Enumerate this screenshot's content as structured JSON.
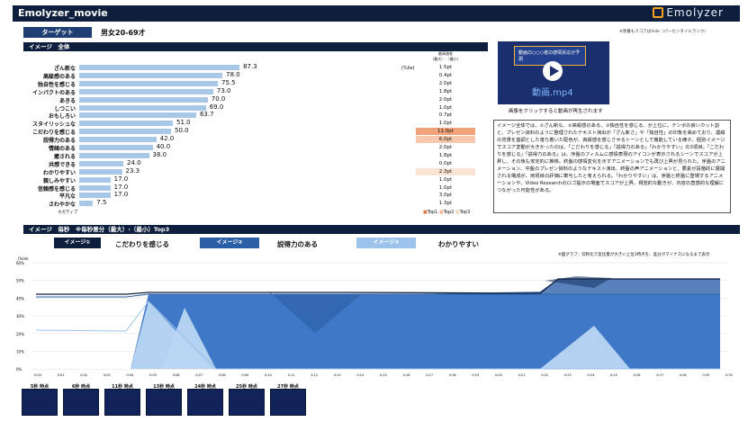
{
  "header": {
    "title": "Emolyzer_movie",
    "logo": "Emolyzer"
  },
  "note_top": "※黒番もスコアは%ile（パーセンタイルランク）",
  "target": {
    "label": "ターゲット",
    "value": "男女20-69才"
  },
  "overall": {
    "section_title": "イメージ　全体",
    "diff_header": "最高値差\n（最大）-（最小）",
    "unit": "(%ile)",
    "negative_label": "ネガティブ",
    "legend": [
      "Top1",
      "Top2",
      "Top3"
    ],
    "rows": [
      {
        "label": "ざん新な",
        "value": 87.3,
        "diff": "1.5pt",
        "rank": 0
      },
      {
        "label": "高級感のある",
        "value": 78.0,
        "diff": "0.4pt",
        "rank": 0
      },
      {
        "label": "独自性を感じる",
        "value": 75.5,
        "diff": "2.0pt",
        "rank": 0
      },
      {
        "label": "インパクトのある",
        "value": 73.0,
        "diff": "1.8pt",
        "rank": 0
      },
      {
        "label": "あきる",
        "value": 70.0,
        "diff": "2.0pt",
        "rank": 0
      },
      {
        "label": "しつこい",
        "value": 69.0,
        "diff": "1.0pt",
        "rank": 0
      },
      {
        "label": "おもしろい",
        "value": 63.7,
        "diff": "0.7pt",
        "rank": 0
      },
      {
        "label": "スタイリッシュな",
        "value": 51.0,
        "diff": "1.0pt",
        "rank": 0
      },
      {
        "label": "こだわりを感じる",
        "value": 50.0,
        "diff": "11.0pt",
        "rank": 1
      },
      {
        "label": "説得力のある",
        "value": 42.0,
        "diff": "6.0pt",
        "rank": 2
      },
      {
        "label": "情緒のある",
        "value": 40.0,
        "diff": "2.0pt",
        "rank": 0
      },
      {
        "label": "癒される",
        "value": 38.0,
        "diff": "1.8pt",
        "rank": 0
      },
      {
        "label": "共感できる",
        "value": 24.0,
        "diff": "0.0pt",
        "rank": 0
      },
      {
        "label": "わかりやすい",
        "value": 23.3,
        "diff": "2.3pt",
        "rank": 3
      },
      {
        "label": "親しみやすい",
        "value": 17.0,
        "diff": "1.0pt",
        "rank": 0
      },
      {
        "label": "信頼感を感じる",
        "value": 17.0,
        "diff": "1.0pt",
        "rank": 0
      },
      {
        "label": "平凡な",
        "value": 17.0,
        "diff": "3.0pt",
        "rank": 0
      },
      {
        "label": "さわやかな",
        "value": 7.5,
        "diff": "1.3pt",
        "rank": 0
      }
    ]
  },
  "video": {
    "banner": "動画の○○○者の感情反応が予測",
    "filename": "動画.mp4",
    "caption": "画像をクリックすると動画が再生されます"
  },
  "description": "イメージ全体では、①ざん新な、②高級感のある、③独自性を感じる、が上位に。テンポの良いカット割と、プレゼン資料のように整理されたテキスト演出が「ざん新さ」や「独自性」の印象を高めており、濃紺の背景を基調とした落ち着いた配色が、高級感を感じさせるトーンとして機能している様子。個別イメージでスコア変動が大きかったのは、「こだわりを感じる」「説得力のある」「わかりやすい」の3項目。「こだわりを感じる」「説得力のある」は、序盤のフィルムに感情表現のアイコンが表示されるシーンでスコアが上昇し、その後も安定的に推移。終盤の感情変化を示すアニメーションでも再び上昇が見られた。序盤のアニメーション、中盤のプレゼン資料のようなテキスト演出、終盤の声アニメーションと、要素が段階的に展開される構成が、両項目の評価に寄与したと考えられる。「わかりやすい」は、序盤と終盤に登場するアニメーションや、Video Researchのロゴ提示の場面でスコアが上昇。視覚的な動きが、内容の直感的な理解につながった可能性がある。",
  "timeline": {
    "section_title": "イメージ　毎秒　※毎秒差分（最大）-（最小）Top3",
    "note": "※面グラフ：前秒比で変化量が大きい上位3時点を、差分がマイナスになるまで表示",
    "unit": "(%ile)",
    "pills": [
      {
        "tag": "イメージ①",
        "label": "こだわりを感じる",
        "color": "#0d1f3c"
      },
      {
        "tag": "イメージ②",
        "label": "説得力のある",
        "color": "#2a5ea5"
      },
      {
        "tag": "イメージ③",
        "label": "わかりやすい",
        "color": "#9cc3ec"
      }
    ],
    "y_ticks": [
      "60%",
      "50%",
      "40%",
      "30%",
      "20%",
      "10%",
      "0%"
    ],
    "x_ticks": [
      "0:00",
      "0:01",
      "0:02",
      "0:03",
      "0:04",
      "0:05",
      "0:06",
      "0:07",
      "0:08",
      "0:09",
      "0:10",
      "0:11",
      "0:12",
      "0:13",
      "0:14",
      "0:15",
      "0:16",
      "0:17",
      "0:18",
      "0:19",
      "0:20",
      "0:21",
      "0:22",
      "0:23",
      "0:24",
      "0:25",
      "0:26",
      "0:27",
      "0:28",
      "0:29",
      "0:30"
    ],
    "thumbs": [
      "5秒 時点",
      "6秒 時点",
      "11秒 時点",
      "13秒 時点",
      "24秒 時点",
      "25秒 時点",
      "27秒 時点"
    ]
  },
  "colors": {
    "navy": "#0d1f3c",
    "mid": "#2a5ea5",
    "light": "#9cc3ec",
    "bar": "#a9c8e8",
    "top1": "#f0a27a",
    "top2": "#f6c9ad",
    "top3": "#fbe3d6"
  }
}
